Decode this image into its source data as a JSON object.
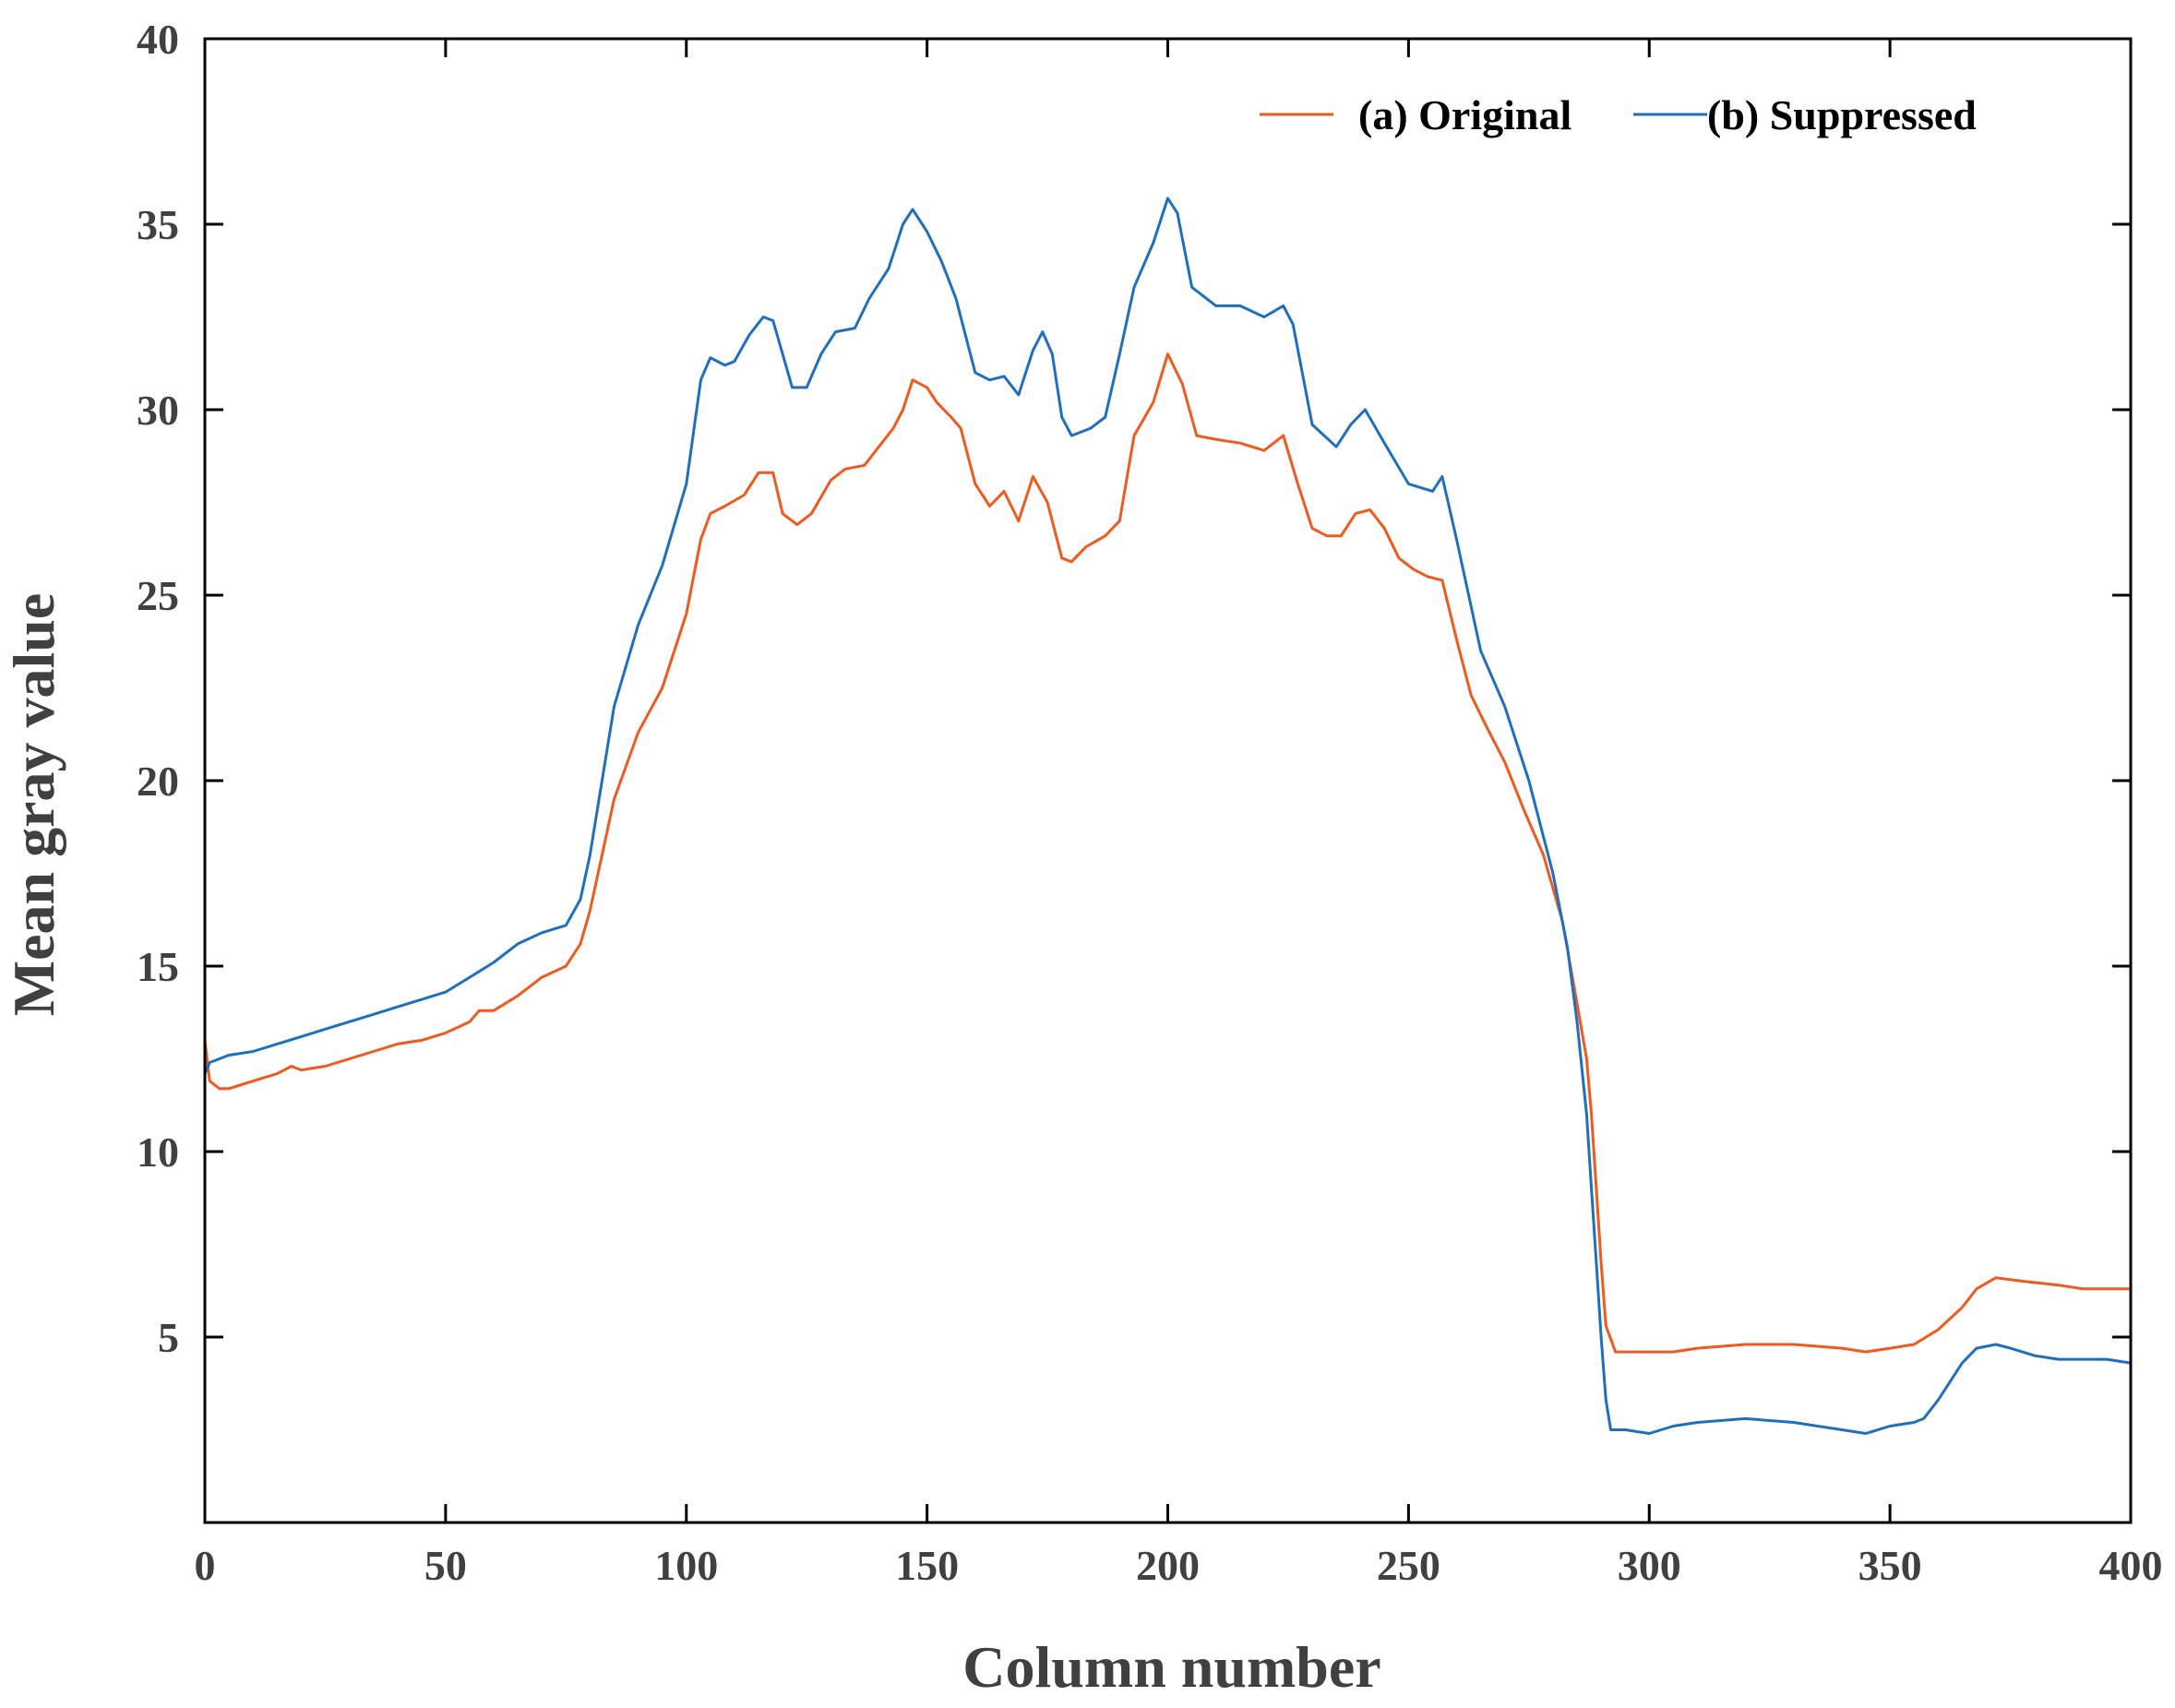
{
  "chart_data": {
    "type": "line",
    "title": "",
    "xlabel": "Column number",
    "ylabel": "Mean gray value",
    "xlim": [
      0,
      400
    ],
    "ylim": [
      0,
      40
    ],
    "xticks": [
      0,
      50,
      100,
      150,
      200,
      250,
      300,
      350,
      400
    ],
    "yticks": [
      5,
      10,
      15,
      20,
      25,
      30,
      35,
      40
    ],
    "grid": false,
    "legend": {
      "position": "top-right"
    },
    "colors": {
      "original": "#F05A1E",
      "suppressed": "#1F6FBF",
      "axis": "#000000",
      "text": "#404040"
    },
    "series": [
      {
        "name": "(a) Original",
        "color": "#F05A1E",
        "x": [
          0,
          1,
          3,
          5,
          10,
          15,
          18,
          20,
          25,
          30,
          35,
          40,
          45,
          50,
          55,
          57,
          60,
          65,
          70,
          75,
          78,
          80,
          85,
          90,
          95,
          100,
          103,
          105,
          108,
          112,
          115,
          118,
          120,
          123,
          126,
          130,
          133,
          137,
          140,
          143,
          145,
          147,
          150,
          152,
          155,
          157,
          160,
          163,
          166,
          169,
          172,
          175,
          178,
          180,
          183,
          187,
          190,
          193,
          197,
          200,
          203,
          206,
          210,
          215,
          220,
          224,
          227,
          230,
          233,
          236,
          239,
          242,
          245,
          248,
          251,
          254,
          257,
          260,
          263,
          266,
          270,
          274,
          278,
          282,
          285,
          287,
          288,
          289,
          290,
          291,
          293,
          295,
          300,
          305,
          310,
          320,
          330,
          340,
          345,
          350,
          355,
          360,
          365,
          368,
          372,
          378,
          385,
          390,
          395,
          400
        ],
        "values": [
          13.0,
          11.9,
          11.7,
          11.7,
          11.9,
          12.1,
          12.3,
          12.2,
          12.3,
          12.5,
          12.7,
          12.9,
          13.0,
          13.2,
          13.5,
          13.8,
          13.8,
          14.2,
          14.7,
          15.0,
          15.6,
          16.5,
          19.5,
          21.3,
          22.5,
          24.5,
          26.5,
          27.2,
          27.4,
          27.7,
          28.3,
          28.3,
          27.2,
          26.9,
          27.2,
          28.1,
          28.4,
          28.5,
          29.0,
          29.5,
          30.0,
          30.8,
          30.6,
          30.2,
          29.8,
          29.5,
          28.0,
          27.4,
          27.8,
          27.0,
          28.2,
          27.5,
          26.0,
          25.9,
          26.3,
          26.6,
          27.0,
          29.3,
          30.2,
          31.5,
          30.7,
          29.3,
          29.2,
          29.1,
          28.9,
          29.3,
          28.0,
          26.8,
          26.6,
          26.6,
          27.2,
          27.3,
          26.8,
          26.0,
          25.7,
          25.5,
          25.4,
          23.8,
          22.3,
          21.5,
          20.5,
          19.2,
          18.0,
          16.2,
          14.0,
          12.5,
          11.0,
          9.0,
          7.0,
          5.3,
          4.6,
          4.6,
          4.6,
          4.6,
          4.7,
          4.8,
          4.8,
          4.7,
          4.6,
          4.7,
          4.8,
          5.2,
          5.8,
          6.3,
          6.6,
          6.5,
          6.4,
          6.3,
          6.3,
          6.3
        ]
      },
      {
        "name": "(b) Suppressed",
        "color": "#1F6FBF",
        "x": [
          0,
          1,
          3,
          5,
          10,
          15,
          20,
          25,
          30,
          35,
          40,
          45,
          50,
          55,
          60,
          65,
          70,
          75,
          78,
          80,
          82,
          85,
          90,
          95,
          100,
          103,
          105,
          108,
          110,
          113,
          116,
          118,
          120,
          122,
          125,
          128,
          131,
          135,
          138,
          142,
          145,
          147,
          150,
          153,
          156,
          160,
          163,
          166,
          169,
          172,
          174,
          176,
          178,
          180,
          184,
          187,
          190,
          193,
          197,
          200,
          202,
          205,
          210,
          215,
          220,
          224,
          226,
          230,
          235,
          238,
          241,
          245,
          250,
          255,
          257,
          260,
          265,
          270,
          275,
          280,
          283,
          285,
          287,
          288,
          289,
          290,
          291,
          292,
          295,
          300,
          305,
          310,
          320,
          330,
          340,
          345,
          350,
          355,
          357,
          360,
          365,
          368,
          372,
          375,
          380,
          385,
          390,
          395,
          400
        ],
        "values": [
          12.1,
          12.4,
          12.5,
          12.6,
          12.7,
          12.9,
          13.1,
          13.3,
          13.5,
          13.7,
          13.9,
          14.1,
          14.3,
          14.7,
          15.1,
          15.6,
          15.9,
          16.1,
          16.8,
          18.0,
          19.6,
          22.0,
          24.2,
          25.8,
          28.0,
          30.8,
          31.4,
          31.2,
          31.3,
          32.0,
          32.5,
          32.4,
          31.5,
          30.6,
          30.6,
          31.5,
          32.1,
          32.2,
          33.0,
          33.8,
          35.0,
          35.4,
          34.8,
          34.0,
          33.0,
          31.0,
          30.8,
          30.9,
          30.4,
          31.6,
          32.1,
          31.5,
          29.8,
          29.3,
          29.5,
          29.8,
          31.5,
          33.3,
          34.5,
          35.7,
          35.3,
          33.3,
          32.8,
          32.8,
          32.5,
          32.8,
          32.3,
          29.6,
          29.0,
          29.6,
          30.0,
          29.1,
          28.0,
          27.8,
          28.2,
          26.5,
          23.5,
          22.0,
          20.0,
          17.5,
          15.5,
          13.5,
          11.0,
          9.0,
          7.0,
          5.0,
          3.3,
          2.5,
          2.5,
          2.4,
          2.6,
          2.7,
          2.8,
          2.7,
          2.5,
          2.4,
          2.6,
          2.7,
          2.8,
          3.3,
          4.3,
          4.7,
          4.8,
          4.7,
          4.5,
          4.4,
          4.4,
          4.4,
          4.3
        ]
      }
    ]
  }
}
